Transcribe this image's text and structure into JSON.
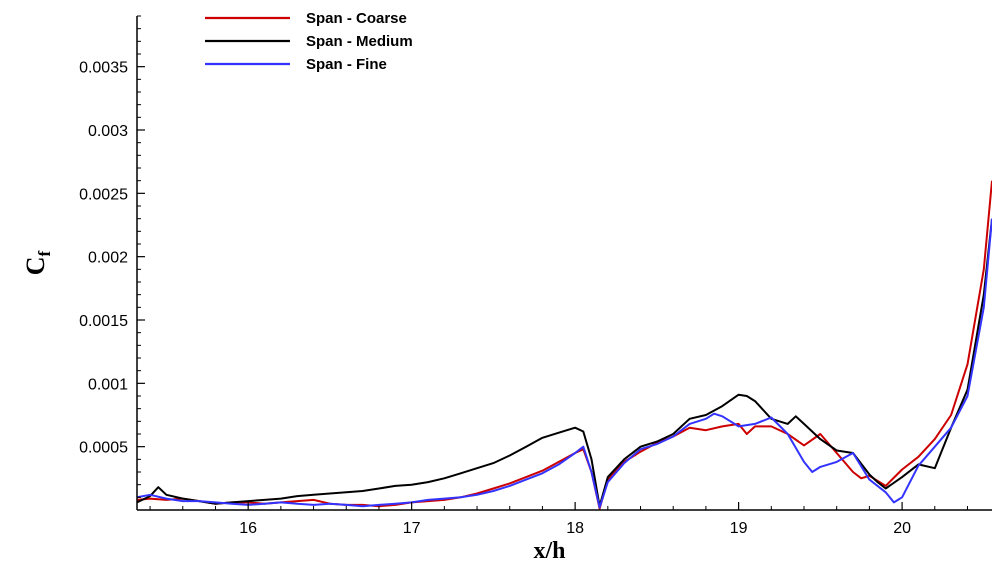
{
  "chart_data": {
    "type": "line",
    "title": "",
    "xlabel": "x/h",
    "ylabel": "C",
    "ylabel_subscript": "f",
    "xlim": [
      15.32,
      20.55
    ],
    "ylim": [
      0.0,
      0.0039
    ],
    "x_ticks": [
      16,
      17,
      18,
      19,
      20
    ],
    "x_tick_labels": [
      "16",
      "17",
      "18",
      "19",
      "20"
    ],
    "y_ticks": [
      0.0005,
      0.001,
      0.0015,
      0.002,
      0.0025,
      0.003,
      0.0035
    ],
    "y_tick_labels": [
      "0.0005",
      "0.001",
      "0.0015",
      "0.002",
      "0.0025",
      "0.003",
      "0.0035"
    ],
    "grid": false,
    "legend_position": "top-left",
    "series": [
      {
        "name": "Span - Coarse",
        "color": "#cc0000",
        "x": [
          15.32,
          15.4,
          15.5,
          15.6,
          15.7,
          15.8,
          15.9,
          16.0,
          16.1,
          16.2,
          16.3,
          16.4,
          16.5,
          16.6,
          16.7,
          16.8,
          16.9,
          17.0,
          17.1,
          17.2,
          17.3,
          17.4,
          17.5,
          17.6,
          17.7,
          17.8,
          17.9,
          18.0,
          18.05,
          18.1,
          18.15,
          18.2,
          18.3,
          18.4,
          18.5,
          18.6,
          18.7,
          18.8,
          18.9,
          19.0,
          19.05,
          19.1,
          19.2,
          19.3,
          19.4,
          19.5,
          19.6,
          19.7,
          19.75,
          19.8,
          19.9,
          20.0,
          20.1,
          20.2,
          20.3,
          20.4,
          20.5,
          20.55
        ],
        "values": [
          8e-05,
          9e-05,
          8e-05,
          9e-05,
          7e-05,
          5e-05,
          6e-05,
          6e-05,
          5e-05,
          6e-05,
          7e-05,
          8e-05,
          5e-05,
          4e-05,
          4e-05,
          3e-05,
          4e-05,
          6e-05,
          7e-05,
          8e-05,
          0.0001,
          0.00013,
          0.00017,
          0.00021,
          0.00026,
          0.00031,
          0.00038,
          0.00045,
          0.00048,
          0.0003,
          1e-05,
          0.00024,
          0.00038,
          0.00046,
          0.00053,
          0.00058,
          0.00065,
          0.00063,
          0.00066,
          0.00068,
          0.0006,
          0.00066,
          0.00066,
          0.0006,
          0.00051,
          0.0006,
          0.00045,
          0.0003,
          0.00025,
          0.00027,
          0.00019,
          0.00032,
          0.00042,
          0.00056,
          0.00075,
          0.00115,
          0.0019,
          0.0026
        ]
      },
      {
        "name": "Span - Medium",
        "color": "#000000",
        "x": [
          15.32,
          15.4,
          15.45,
          15.5,
          15.6,
          15.7,
          15.8,
          15.9,
          16.0,
          16.1,
          16.2,
          16.3,
          16.4,
          16.5,
          16.6,
          16.7,
          16.8,
          16.9,
          17.0,
          17.1,
          17.2,
          17.3,
          17.4,
          17.5,
          17.6,
          17.7,
          17.8,
          17.9,
          18.0,
          18.05,
          18.1,
          18.15,
          18.2,
          18.3,
          18.4,
          18.5,
          18.6,
          18.7,
          18.8,
          18.9,
          19.0,
          19.05,
          19.1,
          19.2,
          19.3,
          19.35,
          19.4,
          19.5,
          19.6,
          19.7,
          19.8,
          19.85,
          19.9,
          20.0,
          20.1,
          20.2,
          20.3,
          20.4,
          20.5,
          20.55
        ],
        "values": [
          6e-05,
          0.00011,
          0.00018,
          0.00012,
          9e-05,
          7e-05,
          5e-05,
          6e-05,
          7e-05,
          8e-05,
          9e-05,
          0.00011,
          0.00012,
          0.00013,
          0.00014,
          0.00015,
          0.00017,
          0.00019,
          0.0002,
          0.00022,
          0.00025,
          0.00029,
          0.00033,
          0.00037,
          0.00043,
          0.0005,
          0.00057,
          0.00061,
          0.00065,
          0.00062,
          0.0004,
          3e-05,
          0.00026,
          0.0004,
          0.0005,
          0.00054,
          0.0006,
          0.00072,
          0.00075,
          0.00082,
          0.00091,
          0.0009,
          0.00086,
          0.00072,
          0.00068,
          0.00074,
          0.00068,
          0.00056,
          0.00047,
          0.00045,
          0.00028,
          0.00022,
          0.00017,
          0.00026,
          0.00036,
          0.00033,
          0.00065,
          0.00095,
          0.0017,
          0.0023
        ]
      },
      {
        "name": "Span - Fine",
        "color": "#3333ff",
        "x": [
          15.32,
          15.4,
          15.5,
          15.6,
          15.7,
          15.8,
          15.9,
          16.0,
          16.1,
          16.2,
          16.3,
          16.4,
          16.5,
          16.6,
          16.7,
          16.8,
          16.9,
          17.0,
          17.1,
          17.2,
          17.3,
          17.4,
          17.5,
          17.6,
          17.7,
          17.8,
          17.9,
          18.0,
          18.05,
          18.1,
          18.15,
          18.2,
          18.3,
          18.4,
          18.5,
          18.6,
          18.7,
          18.8,
          18.85,
          18.9,
          19.0,
          19.1,
          19.2,
          19.3,
          19.4,
          19.45,
          19.5,
          19.6,
          19.7,
          19.8,
          19.9,
          19.95,
          20.0,
          20.1,
          20.2,
          20.3,
          20.4,
          20.5,
          20.55
        ],
        "values": [
          0.0001,
          0.00012,
          9e-05,
          7e-05,
          7e-05,
          6e-05,
          5e-05,
          4e-05,
          5e-05,
          6e-05,
          5e-05,
          4e-05,
          5e-05,
          4e-05,
          3e-05,
          4e-05,
          5e-05,
          6e-05,
          8e-05,
          9e-05,
          0.0001,
          0.00012,
          0.00015,
          0.00019,
          0.00024,
          0.00029,
          0.00036,
          0.00045,
          0.0005,
          0.0003,
          2e-05,
          0.00022,
          0.00037,
          0.00048,
          0.00052,
          0.00058,
          0.00068,
          0.00072,
          0.00076,
          0.00074,
          0.00066,
          0.00068,
          0.00073,
          0.0006,
          0.00038,
          0.0003,
          0.00034,
          0.00038,
          0.00045,
          0.00024,
          0.00014,
          6e-05,
          0.0001,
          0.00035,
          0.0005,
          0.00065,
          0.0009,
          0.0016,
          0.0023
        ]
      }
    ]
  }
}
